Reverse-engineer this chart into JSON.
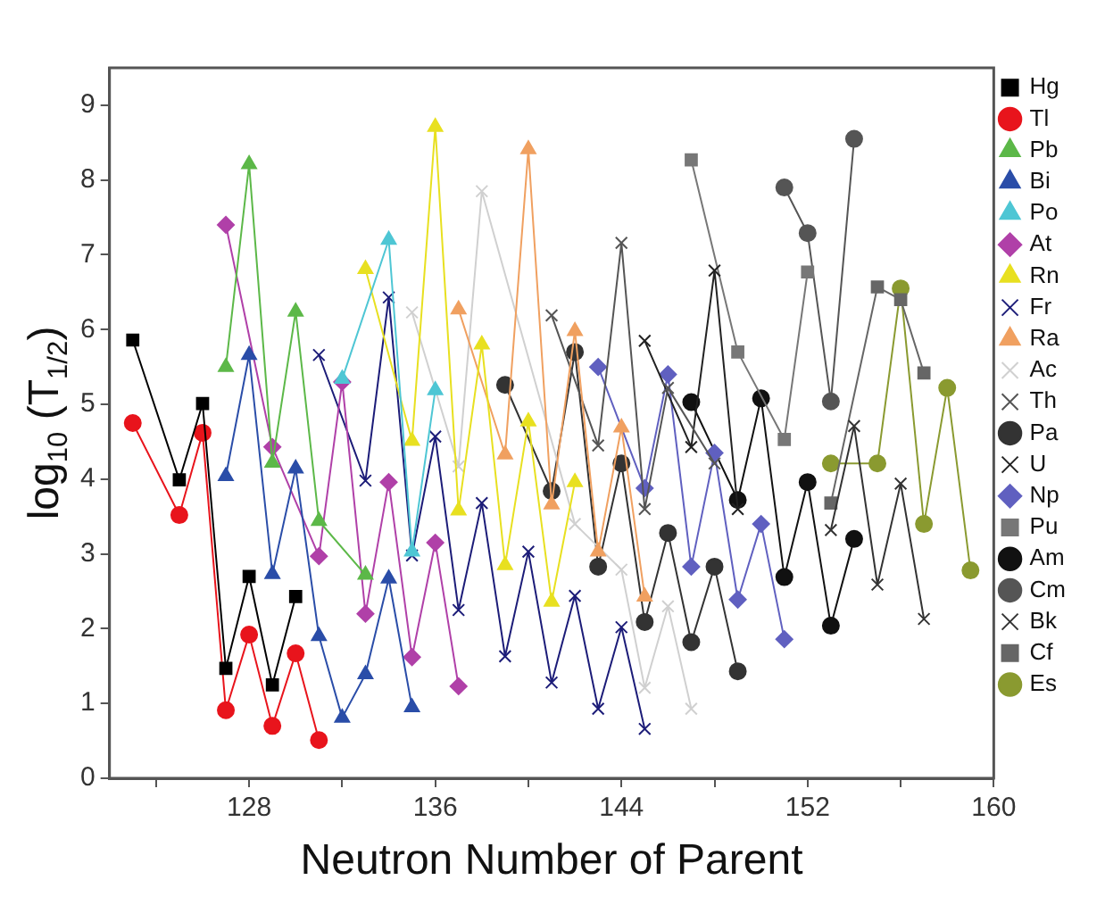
{
  "chart_data": {
    "type": "line",
    "xlabel": "Neutron Number of Parent",
    "ylabel": "log$_{10}$ (T$_{1/2}$)",
    "xlim": [
      122,
      160
    ],
    "xticks": [
      {
        "value": 124,
        "label": null
      },
      128,
      {
        "value": 132,
        "label": null
      },
      136,
      {
        "value": 140,
        "label": null
      },
      144,
      {
        "value": 148,
        "label": null
      },
      152,
      {
        "value": 156,
        "label": null
      },
      160
    ],
    "ylim": [
      0,
      9.5
    ],
    "yticks": [
      0,
      1,
      2,
      3,
      4,
      5,
      6,
      7,
      8,
      9
    ],
    "grid": false,
    "legend": "right",
    "line_style": "solid",
    "series": [
      {
        "name": "Hg",
        "color": "#000000",
        "marker": "square",
        "x": [
          123,
          125,
          126,
          127,
          128,
          129,
          130
        ],
        "values": [
          5.86,
          3.99,
          5.01,
          1.47,
          2.7,
          1.25,
          2.43
        ]
      },
      {
        "name": "Tl",
        "color": "#e8141c",
        "marker": "circle",
        "x": [
          123,
          125,
          126,
          127,
          128,
          129,
          130,
          131
        ],
        "values": [
          4.75,
          3.52,
          4.62,
          0.91,
          1.92,
          0.7,
          1.67,
          0.51
        ]
      },
      {
        "name": "Pb",
        "color": "#5cb848",
        "marker": "triangle",
        "x": [
          127,
          128,
          129,
          130,
          131,
          133
        ],
        "values": [
          5.5,
          8.21,
          4.22,
          6.24,
          3.44,
          2.72
        ]
      },
      {
        "name": "Bi",
        "color": "#2a4da8",
        "marker": "triangle",
        "x": [
          127,
          128,
          129,
          130,
          131,
          132,
          133,
          134,
          135
        ],
        "values": [
          4.04,
          5.66,
          2.73,
          4.14,
          1.9,
          0.81,
          1.39,
          2.67,
          0.95
        ]
      },
      {
        "name": "Po",
        "color": "#4ec6d4",
        "marker": "triangle",
        "x": [
          132,
          134,
          135,
          136
        ],
        "values": [
          5.34,
          7.2,
          3.03,
          5.19
        ]
      },
      {
        "name": "At",
        "color": "#b040a8",
        "marker": "diamond",
        "x": [
          127,
          129,
          131,
          132,
          133,
          134,
          135,
          136,
          137
        ],
        "values": [
          7.4,
          4.43,
          2.97,
          5.3,
          2.2,
          3.96,
          1.62,
          3.15,
          1.23
        ]
      },
      {
        "name": "Rn",
        "color": "#e8e020",
        "marker": "triangle",
        "x": [
          133,
          135,
          136,
          137,
          138,
          139,
          140,
          141,
          142
        ],
        "values": [
          6.81,
          4.51,
          8.71,
          3.58,
          5.8,
          2.85,
          4.77,
          2.36,
          3.96
        ]
      },
      {
        "name": "Fr",
        "color": "#1c1c78",
        "marker": "cross",
        "x": [
          131,
          133,
          134,
          135,
          136,
          137,
          138,
          139,
          140,
          141,
          142,
          143,
          144,
          145
        ],
        "values": [
          5.66,
          3.98,
          6.43,
          2.98,
          4.57,
          2.25,
          3.68,
          1.63,
          3.03,
          1.28,
          2.44,
          0.93,
          2.02,
          0.66
        ]
      },
      {
        "name": "Ra",
        "color": "#f0a060",
        "marker": "triangle",
        "x": [
          137,
          139,
          140,
          141,
          142,
          143,
          144,
          145
        ],
        "values": [
          6.27,
          4.33,
          8.41,
          3.66,
          5.98,
          3.03,
          4.69,
          2.43
        ]
      },
      {
        "name": "Ac",
        "color": "#d0d0d0",
        "marker": "cross",
        "x": [
          135,
          137,
          138,
          142,
          144,
          145,
          146,
          147
        ],
        "values": [
          6.23,
          4.17,
          7.85,
          3.4,
          2.79,
          1.21,
          2.3,
          0.93
        ]
      },
      {
        "name": "Th",
        "color": "#555555",
        "marker": "cross",
        "x": [
          141,
          143,
          144,
          145,
          146,
          148
        ],
        "values": [
          6.19,
          4.45,
          7.16,
          3.6,
          5.22,
          4.21
        ]
      },
      {
        "name": "Pa",
        "color": "#333333",
        "marker": "circle",
        "x": [
          139,
          141,
          142,
          143,
          144,
          145,
          146,
          147,
          148,
          149
        ],
        "values": [
          5.26,
          3.84,
          5.7,
          2.83,
          4.21,
          2.09,
          3.28,
          1.82,
          2.83,
          1.43
        ]
      },
      {
        "name": "U",
        "color": "#222222",
        "marker": "cross",
        "x": [
          145,
          147,
          148,
          149
        ],
        "values": [
          5.85,
          4.43,
          6.79,
          3.6
        ]
      },
      {
        "name": "Np",
        "color": "#6060c0",
        "marker": "diamond",
        "x": [
          143,
          145,
          146,
          147,
          148,
          149,
          150,
          151
        ],
        "values": [
          5.5,
          3.88,
          5.4,
          2.83,
          4.35,
          2.39,
          3.4,
          1.86
        ]
      },
      {
        "name": "Pu",
        "color": "#777777",
        "marker": "square",
        "x": [
          147,
          149,
          151,
          152
        ],
        "values": [
          8.27,
          5.7,
          4.53,
          6.77
        ]
      },
      {
        "name": "Am",
        "color": "#111111",
        "marker": "circle",
        "x": [
          147,
          149,
          150,
          151,
          152,
          153,
          154
        ],
        "values": [
          5.03,
          3.72,
          5.08,
          2.69,
          3.96,
          2.04,
          3.2
        ]
      },
      {
        "name": "Cm",
        "color": "#555555",
        "marker": "circle",
        "x": [
          151,
          152,
          153,
          154
        ],
        "values": [
          7.9,
          7.29,
          5.04,
          8.55
        ]
      },
      {
        "name": "Bk",
        "color": "#333333",
        "marker": "cross",
        "x": [
          153,
          154,
          155,
          156,
          157
        ],
        "values": [
          3.32,
          4.71,
          2.59,
          3.94,
          2.13
        ]
      },
      {
        "name": "Cf",
        "color": "#666666",
        "marker": "square",
        "x": [
          153,
          155,
          156,
          157
        ],
        "values": [
          3.68,
          6.57,
          6.4,
          5.42
        ]
      },
      {
        "name": "Es",
        "color": "#8a9a30",
        "marker": "circle",
        "x": [
          153,
          155,
          156,
          157,
          158,
          159
        ],
        "values": [
          4.21,
          4.21,
          6.55,
          3.4,
          5.22,
          2.78
        ]
      }
    ]
  }
}
